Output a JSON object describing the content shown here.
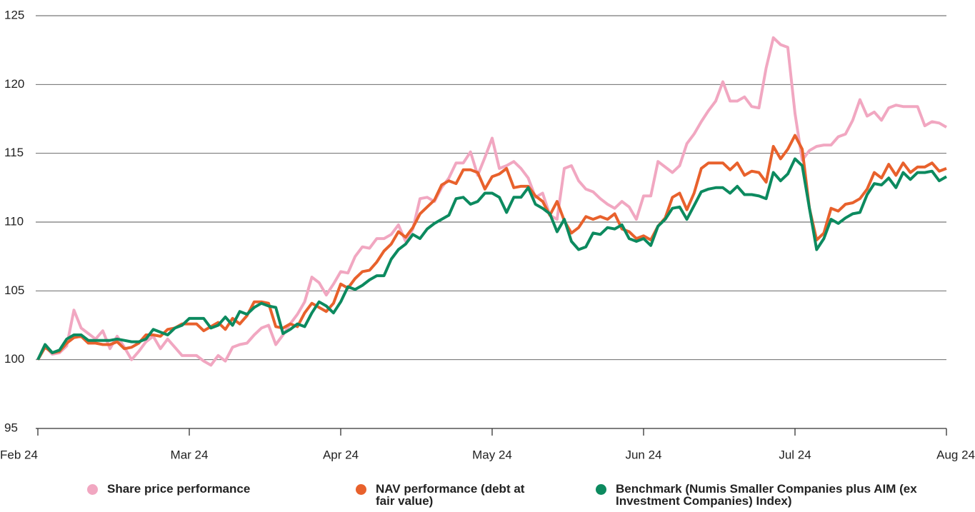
{
  "chart_data": {
    "type": "line",
    "categories": [
      "Feb 24",
      null,
      null,
      null,
      null,
      null,
      null,
      null,
      null,
      null,
      null,
      null,
      null,
      null,
      null,
      null,
      null,
      null,
      null,
      null,
      null,
      "Mar 24",
      null,
      null,
      null,
      null,
      null,
      null,
      null,
      null,
      null,
      null,
      null,
      null,
      null,
      null,
      null,
      null,
      null,
      null,
      null,
      null,
      "Apr 24",
      null,
      null,
      null,
      null,
      null,
      null,
      null,
      null,
      null,
      null,
      null,
      null,
      null,
      null,
      null,
      null,
      null,
      null,
      null,
      null,
      "May 24",
      null,
      null,
      null,
      null,
      null,
      null,
      null,
      null,
      null,
      null,
      null,
      null,
      null,
      null,
      null,
      null,
      null,
      null,
      null,
      null,
      "Jun 24",
      null,
      null,
      null,
      null,
      null,
      null,
      null,
      null,
      null,
      null,
      null,
      null,
      null,
      null,
      null,
      null,
      null,
      null,
      null,
      null,
      "Jul 24",
      null,
      null,
      null,
      null,
      null,
      null,
      null,
      null,
      null,
      null,
      null,
      null,
      null,
      null,
      null,
      null,
      null,
      null,
      null,
      null,
      "Aug 24"
    ],
    "series": [
      {
        "name": "Share price performance",
        "color": "#f1a7c1",
        "values": [
          100,
          101,
          100.4,
          100.5,
          101,
          103.6,
          102.3,
          101.9,
          101.5,
          102.1,
          100.8,
          101.7,
          100.9,
          100,
          100.6,
          101.3,
          101.7,
          100.8,
          101.5,
          100.9,
          100.3,
          100.3,
          100.3,
          99.9,
          99.6,
          100.3,
          99.9,
          100.9,
          101.1,
          101.2,
          101.8,
          102.3,
          102.5,
          101.1,
          101.8,
          102.6,
          103.3,
          104.2,
          106,
          105.6,
          104.7,
          105.5,
          106.4,
          106.3,
          107.5,
          108.2,
          108.1,
          108.8,
          108.8,
          109.1,
          109.8,
          108.6,
          109.5,
          111.7,
          111.8,
          111.5,
          112.5,
          113.2,
          114.3,
          114.3,
          115.1,
          113.4,
          114.7,
          116.1,
          113.9,
          114.1,
          114.4,
          113.9,
          113.2,
          111.8,
          112.1,
          110.5,
          110.2,
          113.9,
          114.1,
          113,
          112.4,
          112.2,
          111.7,
          111.3,
          111,
          111.5,
          111.1,
          110.2,
          111.9,
          111.9,
          114.4,
          114,
          113.6,
          114.1,
          115.7,
          116.4,
          117.3,
          118.1,
          118.8,
          120.2,
          118.8,
          118.8,
          119.1,
          118.4,
          118.3,
          121.2,
          123.4,
          122.9,
          122.7,
          117.9,
          114.5,
          115.2,
          115.5,
          115.6,
          115.6,
          116.2,
          116.4,
          117.4,
          118.9,
          117.7,
          118,
          117.4,
          118.3,
          118.5,
          118.4,
          118.4,
          118.4,
          117,
          117.3,
          117.2,
          116.9
        ]
      },
      {
        "name": "NAV performance (debt at fair value)",
        "color": "#e8612c",
        "values": [
          100,
          100.9,
          100.5,
          100.6,
          101.2,
          101.6,
          101.7,
          101.2,
          101.2,
          101.1,
          101.1,
          101.3,
          100.8,
          100.9,
          101.2,
          101.8,
          101.8,
          101.7,
          102.2,
          102.3,
          102.6,
          102.6,
          102.6,
          102.1,
          102.4,
          102.7,
          102.2,
          103,
          102.6,
          103.2,
          104.2,
          104.2,
          104.1,
          102.4,
          102.3,
          102.6,
          102.4,
          103.4,
          104.1,
          103.8,
          103.5,
          104.1,
          105.5,
          105.2,
          105.9,
          106.4,
          106.5,
          107.1,
          107.9,
          108.4,
          109.3,
          108.9,
          109.6,
          110.6,
          111.1,
          111.6,
          112.7,
          113,
          112.8,
          113.8,
          113.8,
          113.6,
          112.4,
          113.3,
          113.5,
          113.9,
          112.5,
          112.6,
          112.6,
          111.9,
          111.5,
          110.5,
          111.5,
          110.1,
          109.2,
          109.6,
          110.4,
          110.2,
          110.4,
          110.2,
          110.6,
          109.5,
          109.3,
          108.8,
          109,
          108.7,
          109.7,
          110.3,
          111.8,
          112.1,
          110.9,
          112.1,
          113.9,
          114.3,
          114.3,
          114.3,
          113.8,
          114.3,
          113.4,
          113.7,
          113.6,
          112.9,
          115.5,
          114.6,
          115.3,
          116.3,
          115.3,
          111,
          108.7,
          109.2,
          111,
          110.8,
          111.3,
          111.4,
          111.7,
          112.4,
          113.6,
          113.2,
          114.2,
          113.4,
          114.3,
          113.6,
          114,
          114,
          114.3,
          113.7,
          113.9
        ]
      },
      {
        "name": "Benchmark (Numis Smaller Companies plus AIM (ex Investment Companies) Index)",
        "color": "#0c8a5f",
        "values": [
          100,
          101.1,
          100.5,
          100.7,
          101.5,
          101.8,
          101.8,
          101.4,
          101.4,
          101.4,
          101.4,
          101.5,
          101.4,
          101.3,
          101.3,
          101.5,
          102.2,
          102,
          101.8,
          102.3,
          102.5,
          103,
          103,
          103,
          102.3,
          102.5,
          103.1,
          102.5,
          103.5,
          103.3,
          103.8,
          104.1,
          103.9,
          103.8,
          101.9,
          102.2,
          102.6,
          102.4,
          103.4,
          104.2,
          103.9,
          103.4,
          104.2,
          105.3,
          105.1,
          105.4,
          105.8,
          106.1,
          106.1,
          107.3,
          108,
          108.4,
          109.1,
          108.8,
          109.5,
          109.9,
          110.2,
          110.5,
          111.7,
          111.8,
          111.3,
          111.5,
          112.1,
          112.1,
          111.8,
          110.7,
          111.8,
          111.8,
          112.5,
          111.3,
          111,
          110.6,
          109.3,
          110.2,
          108.6,
          108,
          108.2,
          109.2,
          109.1,
          109.6,
          109.5,
          109.8,
          108.8,
          108.6,
          108.8,
          108.3,
          109.7,
          110.2,
          111,
          111.1,
          110.2,
          111.2,
          112.2,
          112.4,
          112.5,
          112.5,
          112.1,
          112.6,
          112,
          112,
          111.9,
          111.7,
          113.6,
          113,
          113.5,
          114.6,
          114.1,
          111,
          108,
          108.8,
          110.2,
          109.9,
          110.3,
          110.6,
          110.7,
          112,
          112.8,
          112.7,
          113.2,
          112.5,
          113.6,
          113.1,
          113.6,
          113.6,
          113.7,
          113,
          113.3
        ]
      }
    ],
    "ylim": [
      95,
      125
    ],
    "yticks": [
      95,
      100,
      105,
      110,
      115,
      120,
      125
    ],
    "grid": true
  }
}
